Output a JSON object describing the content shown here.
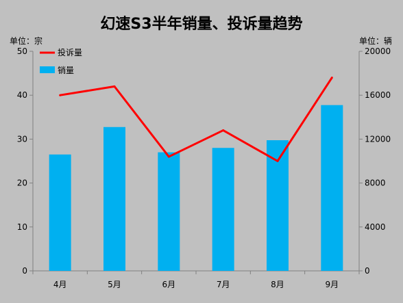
{
  "chart_data": {
    "type": "bar",
    "title": "幻速S3半年销量、投诉量趋势",
    "categories": [
      "4月",
      "5月",
      "6月",
      "7月",
      "8月",
      "9月"
    ],
    "series": [
      {
        "name": "销量",
        "kind": "bar",
        "axis": "right",
        "color": "#00b0f0",
        "values": [
          10600,
          13100,
          10800,
          11200,
          11900,
          15100
        ]
      },
      {
        "name": "投诉量",
        "kind": "line",
        "axis": "left",
        "color": "#ff0000",
        "values": [
          40,
          42,
          26,
          32,
          25,
          44
        ]
      }
    ],
    "y_left": {
      "label": "单位：宗",
      "ylim": [
        0,
        50
      ],
      "ticks": [
        0,
        10,
        20,
        30,
        40,
        50
      ]
    },
    "y_right": {
      "label": "单位：辆",
      "ylim": [
        0,
        20000
      ],
      "ticks": [
        0,
        4000,
        8000,
        12000,
        16000,
        20000
      ]
    },
    "legend": {
      "placement": "top-left",
      "items": [
        "投诉量",
        "销量"
      ]
    },
    "grid": false
  },
  "colors": {
    "background": "#c0c0c0",
    "bar": "#00b0f0",
    "line": "#ff0000",
    "axis": "#808080"
  }
}
